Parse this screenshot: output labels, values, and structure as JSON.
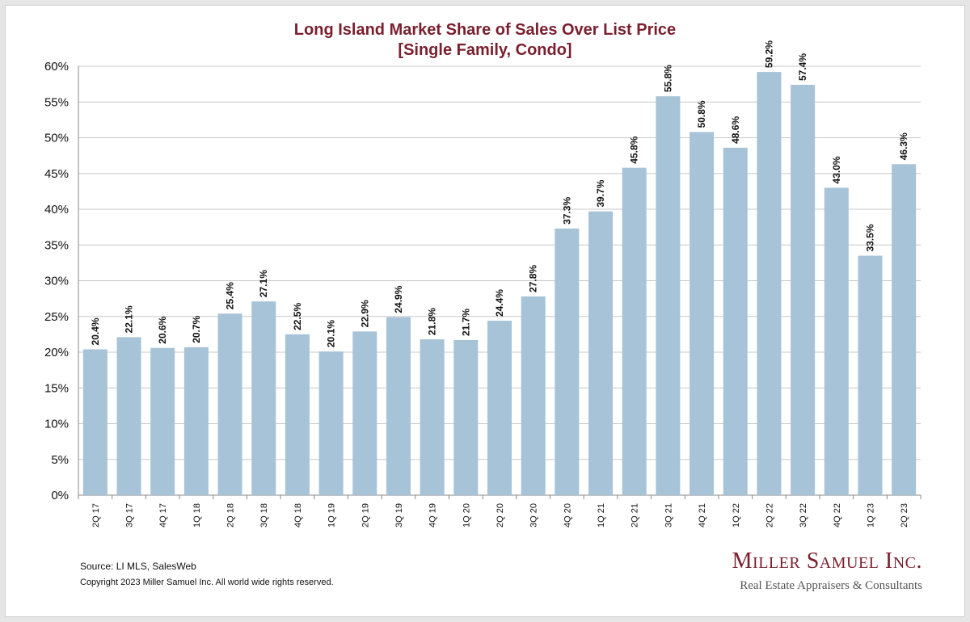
{
  "chart_data": {
    "type": "bar",
    "title": "Long Island Market Share of Sales Over List Price",
    "subtitle": "[Single Family, Condo]",
    "categories": [
      "2Q 17",
      "3Q 17",
      "4Q 17",
      "1Q 18",
      "2Q 18",
      "3Q 18",
      "4Q 18",
      "1Q 19",
      "2Q 19",
      "3Q 19",
      "4Q 19",
      "1Q 20",
      "2Q 20",
      "3Q 20",
      "4Q 20",
      "1Q 21",
      "2Q 21",
      "3Q 21",
      "4Q 21",
      "1Q 22",
      "2Q 22",
      "3Q 22",
      "4Q 22",
      "1Q 23",
      "2Q 23"
    ],
    "values": [
      20.4,
      22.1,
      20.6,
      20.7,
      25.4,
      27.1,
      22.5,
      20.1,
      22.9,
      24.9,
      21.8,
      21.7,
      24.4,
      27.8,
      37.3,
      39.7,
      45.8,
      55.8,
      50.8,
      48.6,
      59.2,
      57.4,
      43.0,
      33.5,
      46.3
    ],
    "value_labels": [
      "20.4%",
      "22.1%",
      "20.6%",
      "20.7%",
      "25.4%",
      "27.1%",
      "22.5%",
      "20.1%",
      "22.9%",
      "24.9%",
      "21.8%",
      "21.7%",
      "24.4%",
      "27.8%",
      "37.3%",
      "39.7%",
      "45.8%",
      "55.8%",
      "50.8%",
      "48.6%",
      "59.2%",
      "57.4%",
      "43.0%",
      "33.5%",
      "46.3%"
    ],
    "ylim": [
      0,
      60
    ],
    "yticks": [
      0,
      5,
      10,
      15,
      20,
      25,
      30,
      35,
      40,
      45,
      50,
      55,
      60
    ],
    "ytick_labels": [
      "0%",
      "5%",
      "10%",
      "15%",
      "20%",
      "25%",
      "30%",
      "35%",
      "40%",
      "45%",
      "50%",
      "55%",
      "60%"
    ],
    "grid": true,
    "xlabel": "",
    "ylabel": "",
    "bar_color": "#a7c3d8",
    "title_color": "#7a1f2e"
  },
  "footer": {
    "source": "Source:  LI MLS, SalesWeb",
    "copyright": "Copyright 2023 Miller Samuel Inc.  All world wide rights reserved."
  },
  "logo": {
    "name": "Miller Samuel Inc.",
    "tagline": "Real Estate Appraisers & Consultants"
  }
}
